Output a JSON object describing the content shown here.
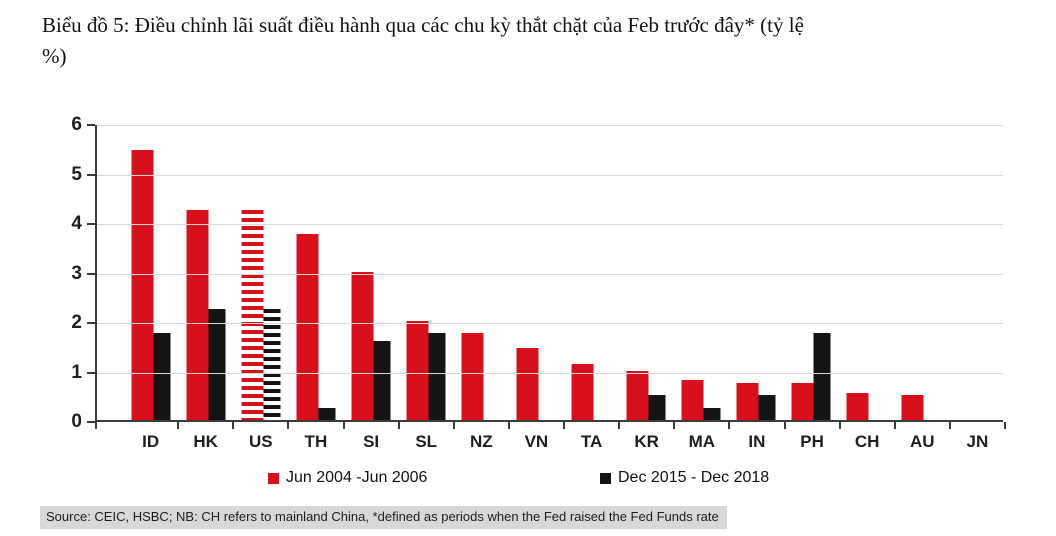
{
  "title": {
    "line1": "Biểu đồ 5: Điều chỉnh lãi suất điều hành qua các chu kỳ thắt chặt của Feb trước đây* (tỷ lệ",
    "line2": "%)"
  },
  "source": "Source: CEIC, HSBC; NB: CH refers to mainland China, *defined as periods when the Fed raised the Fed Funds rate",
  "colors": {
    "series1": "#d8101c",
    "series2": "#141414",
    "grid": "#d9d9d9",
    "axis": "#3c3c3c",
    "source_bg": "#d8d8d8"
  },
  "chart_data": {
    "type": "bar",
    "title": "Biểu đồ 5: Điều chỉnh lãi suất điều hành qua các chu kỳ thắt chặt của Feb trước đây* (tỷ lệ %)",
    "categories": [
      "ID",
      "HK",
      "US",
      "TH",
      "SI",
      "SL",
      "NZ",
      "VN",
      "TA",
      "KR",
      "MA",
      "IN",
      "PH",
      "CH",
      "AU",
      "JN"
    ],
    "series": [
      {
        "name": "Jun 2004 -Jun 2006",
        "color": "#d8101c",
        "values": [
          5.45,
          4.25,
          4.25,
          3.75,
          3,
          2,
          1.75,
          1.45,
          1.13,
          1,
          0.8,
          0.75,
          0.75,
          0.54,
          0.5,
          0
        ]
      },
      {
        "name": "Dec 2015 - Dec 2018",
        "color": "#141414",
        "values": [
          1.75,
          2.25,
          2.25,
          0.25,
          1.6,
          1.75,
          0,
          0,
          0,
          0.5,
          0.25,
          0.5,
          1.75,
          0,
          0,
          0
        ]
      }
    ],
    "striped_categories": [
      "US"
    ],
    "xlabel": "",
    "ylabel": "",
    "ylim": [
      0,
      6
    ],
    "yticks": [
      0,
      1,
      2,
      3,
      4,
      5,
      6
    ],
    "grid": true,
    "legend_position": "bottom"
  }
}
